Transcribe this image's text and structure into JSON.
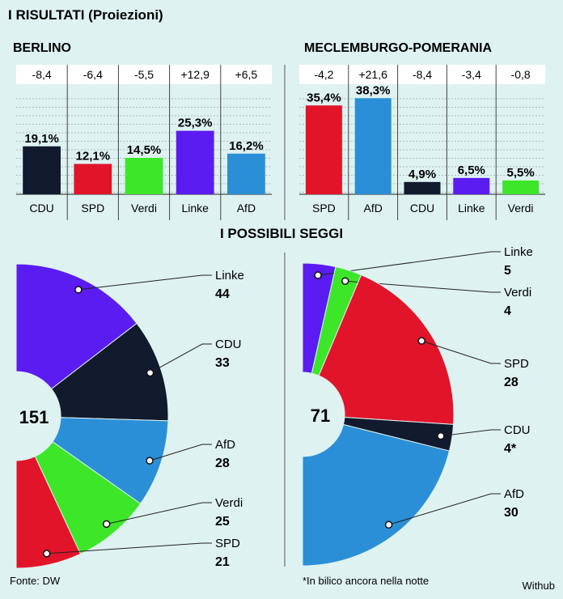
{
  "header": {
    "title": "I RISULTATI (Proiezioni)",
    "seats_title": "I POSSIBILI SEGGI"
  },
  "footer": {
    "source": "Fonte: DW",
    "note": "*In bilico ancora nella notte",
    "credit": "Withub"
  },
  "chart_data": [
    {
      "type": "bar",
      "title": "BERLINO",
      "categories": [
        "CDU",
        "SPD",
        "Verdi",
        "Linke",
        "AfD"
      ],
      "values": [
        19.1,
        12.1,
        14.5,
        25.3,
        16.2
      ],
      "value_labels": [
        "19,1%",
        "12,1%",
        "14,5%",
        "25,3%",
        "16,2%"
      ],
      "changes": [
        "-8,4",
        "-6,4",
        "-5,5",
        "+12,9",
        "+6,5"
      ],
      "colors": [
        "#121a2e",
        "#e2142a",
        "#3ee62a",
        "#5a1cf0",
        "#2a8fd6"
      ],
      "ylim": [
        0,
        40
      ],
      "grid": true
    },
    {
      "type": "bar",
      "title": "MECLEMBURGO-POMERANIA",
      "categories": [
        "SPD",
        "AfD",
        "CDU",
        "Linke",
        "Verdi"
      ],
      "values": [
        35.4,
        38.3,
        4.9,
        6.5,
        5.5
      ],
      "value_labels": [
        "35,4%",
        "38,3%",
        "4,9%",
        "6,5%",
        "5,5%"
      ],
      "changes": [
        "-4,2",
        "+21,6",
        "-8,4",
        "-3,4",
        "-0,8"
      ],
      "colors": [
        "#e2142a",
        "#2a8fd6",
        "#121a2e",
        "#5a1cf0",
        "#3ee62a"
      ],
      "ylim": [
        0,
        40
      ],
      "grid": true
    },
    {
      "type": "pie",
      "title": "I POSSIBILI SEGGI",
      "total": "151",
      "categories": [
        "Linke",
        "CDU",
        "AfD",
        "Verdi",
        "SPD"
      ],
      "values": [
        44,
        33,
        28,
        25,
        21
      ],
      "value_labels": [
        "44",
        "33",
        "28",
        "25",
        "21"
      ],
      "colors": [
        "#5a1cf0",
        "#121a2e",
        "#2a8fd6",
        "#3ee62a",
        "#e2142a"
      ]
    },
    {
      "type": "pie",
      "title": "I POSSIBILI SEGGI",
      "total": "71",
      "categories": [
        "Linke",
        "Verdi",
        "SPD",
        "CDU",
        "AfD"
      ],
      "values": [
        5,
        4,
        28,
        4,
        30
      ],
      "value_labels": [
        "5",
        "4",
        "28",
        "4*",
        "30"
      ],
      "colors": [
        "#5a1cf0",
        "#3ee62a",
        "#e2142a",
        "#121a2e",
        "#2a8fd6"
      ]
    }
  ]
}
